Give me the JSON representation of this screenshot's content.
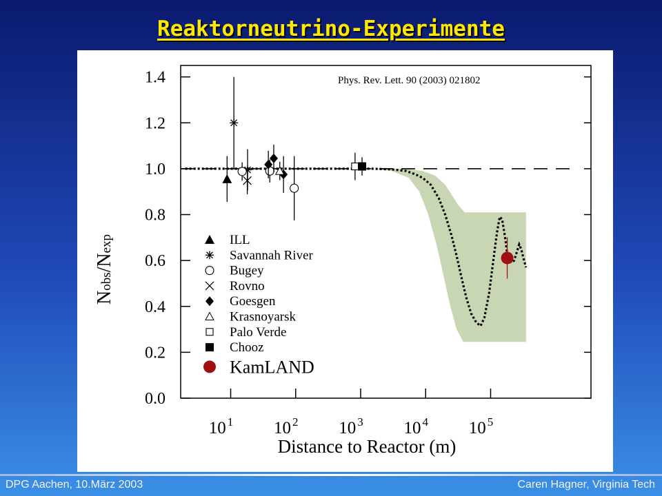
{
  "slide": {
    "title": "Reaktorneutrino-Experimente",
    "footer_left": "DPG Aachen, 10.März 2003",
    "footer_right": "Caren Hagner, Virginia Tech"
  },
  "chart_data": {
    "type": "scatter",
    "citation": "Phys. Rev. Lett. 90 (2003) 021802",
    "xlabel": "Distance to Reactor (m)",
    "ylabel": "Nobs/Nexp",
    "x_scale": "log",
    "xlim": [
      1.7,
      3500000
    ],
    "ylim": [
      0,
      1.45
    ],
    "x_ticks": [
      {
        "value": 10,
        "base": "10",
        "exp": "1"
      },
      {
        "value": 100,
        "base": "10",
        "exp": "2"
      },
      {
        "value": 1000,
        "base": "10",
        "exp": "3"
      },
      {
        "value": 10000,
        "base": "10",
        "exp": "4"
      },
      {
        "value": 100000,
        "base": "10",
        "exp": "5"
      }
    ],
    "y_ticks": [
      "0.0",
      "0.2",
      "0.4",
      "0.6",
      "0.8",
      "1.0",
      "1.2",
      "1.4"
    ],
    "reference_line": 1.0,
    "series": [
      {
        "name": "ILL",
        "marker": "triangle-filled",
        "points": [
          {
            "x": 8.8,
            "y": 0.955,
            "err": 0.1
          }
        ]
      },
      {
        "name": "Savannah River",
        "marker": "asterisk",
        "points": [
          {
            "x": 11.2,
            "y": 1.2,
            "err": 0.2
          },
          {
            "x": 18.2,
            "y": 0.995,
            "err": 0.09
          }
        ]
      },
      {
        "name": "Bugey",
        "marker": "circle-open",
        "points": [
          {
            "x": 15,
            "y": 0.988,
            "err": 0.04
          },
          {
            "x": 40,
            "y": 0.99,
            "err": 0.05
          },
          {
            "x": 95,
            "y": 0.915,
            "err": 0.14
          }
        ]
      },
      {
        "name": "Rovno",
        "marker": "cross",
        "points": [
          {
            "x": 18,
            "y": 0.948,
            "err": 0.06
          }
        ]
      },
      {
        "name": "Goesgen",
        "marker": "diamond-filled",
        "points": [
          {
            "x": 38,
            "y": 1.018,
            "err": 0.06
          },
          {
            "x": 46,
            "y": 1.045,
            "err": 0.06
          },
          {
            "x": 65,
            "y": 0.975,
            "err": 0.08
          }
        ]
      },
      {
        "name": "Krasnoyarsk",
        "marker": "triangle-open",
        "points": [
          {
            "x": 57,
            "y": 0.99,
            "err": 0.04
          }
        ]
      },
      {
        "name": "Palo Verde",
        "marker": "square-open",
        "points": [
          {
            "x": 820,
            "y": 1.01,
            "err": 0.06
          }
        ]
      },
      {
        "name": "Chooz",
        "marker": "square-filled",
        "points": [
          {
            "x": 1050,
            "y": 1.01,
            "err": 0.04
          }
        ]
      },
      {
        "name": "KamLAND",
        "marker": "circle-filled-red",
        "points": [
          {
            "x": 180000,
            "y": 0.611,
            "err": 0.09
          }
        ]
      }
    ],
    "prediction_curve": [
      [
        2,
        1.0
      ],
      [
        300,
        1.0
      ],
      [
        1500,
        1.0
      ],
      [
        3000,
        0.997
      ],
      [
        5000,
        0.99
      ],
      [
        7000,
        0.975
      ],
      [
        9000,
        0.96
      ],
      [
        12000,
        0.93
      ],
      [
        16000,
        0.87
      ],
      [
        20000,
        0.8
      ],
      [
        25000,
        0.71
      ],
      [
        30000,
        0.62
      ],
      [
        36000,
        0.52
      ],
      [
        42000,
        0.44
      ],
      [
        50000,
        0.37
      ],
      [
        60000,
        0.33
      ],
      [
        70000,
        0.315
      ],
      [
        80000,
        0.35
      ],
      [
        95000,
        0.46
      ],
      [
        110000,
        0.6
      ],
      [
        125000,
        0.72
      ],
      [
        138000,
        0.79
      ],
      [
        150000,
        0.78
      ],
      [
        165000,
        0.71
      ],
      [
        180000,
        0.63
      ],
      [
        195000,
        0.6
      ],
      [
        210000,
        0.59
      ],
      [
        230000,
        0.6
      ],
      [
        255000,
        0.64
      ],
      [
        275000,
        0.67
      ],
      [
        295000,
        0.65
      ],
      [
        320000,
        0.61
      ],
      [
        350000,
        0.57
      ]
    ],
    "band_upper": [
      [
        1500,
        1.0
      ],
      [
        5000,
        1.0
      ],
      [
        9000,
        0.99
      ],
      [
        14000,
        0.97
      ],
      [
        20000,
        0.93
      ],
      [
        26000,
        0.88
      ],
      [
        32000,
        0.84
      ],
      [
        40000,
        0.81
      ],
      [
        350000,
        0.81
      ]
    ],
    "band_lower": [
      [
        350000,
        0.245
      ],
      [
        38000,
        0.245
      ],
      [
        30000,
        0.3
      ],
      [
        24000,
        0.4
      ],
      [
        19000,
        0.53
      ],
      [
        15000,
        0.66
      ],
      [
        11000,
        0.8
      ],
      [
        8000,
        0.9
      ],
      [
        5500,
        0.96
      ],
      [
        3000,
        0.99
      ],
      [
        1500,
        1.0
      ]
    ],
    "legend_placement": "lower-left",
    "grid": false
  }
}
